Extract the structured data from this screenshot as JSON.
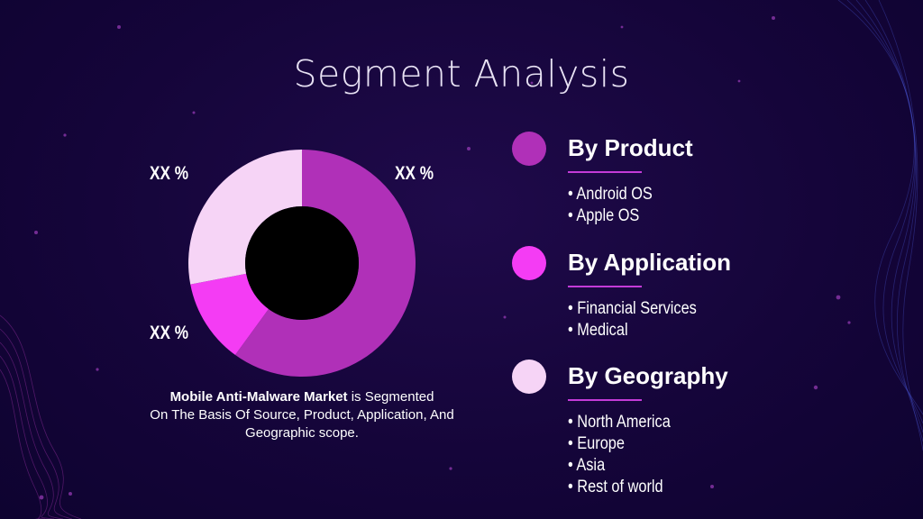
{
  "slide": {
    "title": "Segment Analysis"
  },
  "chart_data": {
    "type": "pie",
    "variant": "donut",
    "slices": [
      {
        "label": "XX %",
        "value": 60,
        "color": "#b030b8"
      },
      {
        "label": "XX %",
        "value": 12,
        "color": "#f43cf4"
      },
      {
        "label": "XX %",
        "value": 28,
        "color": "#f6d4f6"
      }
    ],
    "start_angle_deg": 0,
    "direction": "clockwise"
  },
  "caption": {
    "strong": "Mobile Anti-Malware Market",
    "rest_line1": " is Segmented",
    "rest_line2": "On The Basis Of Source, Product, Application, And",
    "rest_line3": "Geographic scope."
  },
  "segments": [
    {
      "title": "By Product",
      "color": "#b030b8",
      "items": [
        "Android OS",
        "Apple OS"
      ]
    },
    {
      "title": "By Application",
      "color": "#f43cf4",
      "items": [
        "Financial Services",
        "Medical"
      ]
    },
    {
      "title": "By Geography",
      "color": "#f6d4f6",
      "items": [
        "North America",
        "Europe",
        "Asia",
        "Rest of world"
      ]
    }
  ],
  "theme": {
    "background": "#15053a",
    "accent": "#c43bd8",
    "text": "#ffffff"
  }
}
